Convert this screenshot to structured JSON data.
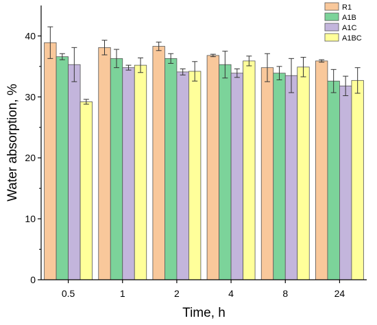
{
  "chart_data": {
    "type": "bar",
    "title": "",
    "xlabel": "Time, h",
    "ylabel": "Water absorption, %",
    "categories": [
      "0.5",
      "1",
      "2",
      "4",
      "8",
      "24"
    ],
    "ylim": [
      0,
      45
    ],
    "yticks": [
      0,
      10,
      20,
      30,
      40
    ],
    "grid": false,
    "legend_position": "top-right",
    "series": [
      {
        "name": "R1",
        "color": "#F9C89B",
        "values": [
          38.9,
          38.1,
          38.3,
          36.8,
          34.8,
          35.9
        ],
        "errors": [
          2.6,
          1.2,
          0.7,
          0.2,
          2.3,
          0.2
        ]
      },
      {
        "name": "A1B",
        "color": "#7CD39A",
        "values": [
          36.6,
          36.3,
          36.3,
          35.3,
          33.9,
          32.6
        ],
        "errors": [
          0.5,
          1.5,
          0.8,
          2.2,
          1.1,
          1.9
        ]
      },
      {
        "name": "A1C",
        "color": "#C3B5DC",
        "values": [
          35.3,
          34.8,
          34.1,
          33.9,
          33.5,
          31.8
        ],
        "errors": [
          2.8,
          0.4,
          0.5,
          0.7,
          2.8,
          1.6
        ]
      },
      {
        "name": "A1BC",
        "color": "#FFFF9A",
        "values": [
          29.2,
          35.2,
          34.2,
          35.9,
          34.9,
          32.7
        ],
        "errors": [
          0.4,
          1.2,
          1.6,
          0.8,
          1.6,
          2.1
        ]
      }
    ]
  }
}
